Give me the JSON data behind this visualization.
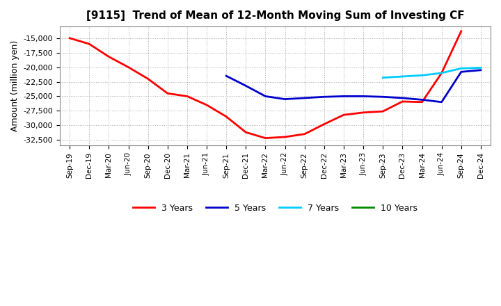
{
  "title": "[9115]  Trend of Mean of 12-Month Moving Sum of Investing CF",
  "ylabel": "Amount (million yen)",
  "background_color": "#ffffff",
  "plot_background_color": "#ffffff",
  "grid_color": "#aaaaaa",
  "x_labels": [
    "Sep-19",
    "Dec-19",
    "Mar-20",
    "Jun-20",
    "Sep-20",
    "Dec-20",
    "Mar-21",
    "Jun-21",
    "Sep-21",
    "Dec-21",
    "Mar-22",
    "Jun-22",
    "Sep-22",
    "Dec-22",
    "Mar-23",
    "Jun-23",
    "Sep-23",
    "Dec-23",
    "Mar-24",
    "Jun-24",
    "Sep-24",
    "Dec-24"
  ],
  "series": {
    "3 Years": {
      "color": "#ff0000",
      "x_indices": [
        0,
        1,
        2,
        3,
        4,
        5,
        6,
        7,
        8,
        9,
        10,
        11,
        12,
        13,
        14,
        15,
        16,
        17,
        18,
        19,
        20
      ],
      "values": [
        -15000,
        -16000,
        -18200,
        -20000,
        -22000,
        -24500,
        -25000,
        -26500,
        -28500,
        -31200,
        -32200,
        -32000,
        -31500,
        -29800,
        -28200,
        -27800,
        -27600,
        -25900,
        -26000,
        -21000,
        -13800
      ]
    },
    "5 Years": {
      "color": "#0000cc",
      "x_indices": [
        8,
        9,
        10,
        11,
        12,
        13,
        14,
        15,
        16,
        17,
        18,
        19,
        20,
        21
      ],
      "values": [
        -21500,
        -23200,
        -25000,
        -25500,
        -25300,
        -25100,
        -25000,
        -25000,
        -25100,
        -25300,
        -25600,
        -26000,
        -20800,
        -20500
      ]
    },
    "7 Years": {
      "color": "#00ccff",
      "x_indices": [
        16,
        17,
        18,
        19,
        20,
        21
      ],
      "values": [
        -21800,
        -21600,
        -21400,
        -21000,
        -20200,
        -20100
      ]
    },
    "10 Years": {
      "color": "#008800",
      "x_indices": [],
      "values": []
    }
  },
  "ylim": [
    -33500,
    -13000
  ],
  "yticks": [
    -32500,
    -30000,
    -27500,
    -25000,
    -22500,
    -20000,
    -17500,
    -15000
  ],
  "legend_labels": [
    "3 Years",
    "5 Years",
    "7 Years",
    "10 Years"
  ],
  "legend_colors": [
    "#ff0000",
    "#0000cc",
    "#00ccff",
    "#008800"
  ]
}
